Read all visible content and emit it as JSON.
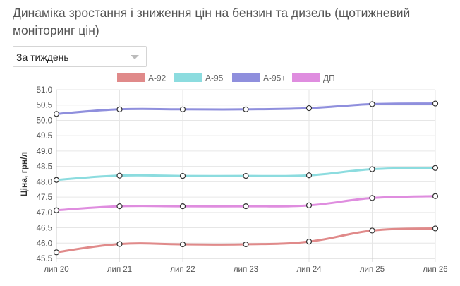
{
  "page": {
    "title": "Динаміка зростання і зниження цін на бензин та дизель (щотижневий моніторинг цін)"
  },
  "period_select": {
    "selected": "За тиждень"
  },
  "chart_data": {
    "type": "line",
    "title": "",
    "xlabel": "",
    "ylabel": "Ціна, грн/л",
    "categories": [
      "лип 20",
      "лип 21",
      "лип 22",
      "лип 23",
      "лип 24",
      "лип 25",
      "лип 26"
    ],
    "ylim": [
      45.5,
      51.0
    ],
    "yticks": [
      "51.0",
      "50.5",
      "50.0",
      "49.5",
      "49.0",
      "48.5",
      "48.0",
      "47.5",
      "47.0",
      "46.5",
      "46.0",
      "45.5"
    ],
    "grid": true,
    "legend_position": "top",
    "series": [
      {
        "name": "А-92",
        "color": "#e08a8a",
        "values": [
          45.7,
          45.97,
          45.96,
          45.96,
          46.05,
          46.41,
          46.48
        ]
      },
      {
        "name": "А-95",
        "color": "#8cdcdf",
        "values": [
          48.06,
          48.2,
          48.19,
          48.19,
          48.21,
          48.41,
          48.45
        ]
      },
      {
        "name": "А-95+",
        "color": "#8f8fdd",
        "values": [
          50.21,
          50.36,
          50.36,
          50.36,
          50.4,
          50.53,
          50.55
        ]
      },
      {
        "name": "ДП",
        "color": "#df8ddf",
        "values": [
          47.07,
          47.2,
          47.2,
          47.2,
          47.23,
          47.47,
          47.53
        ]
      }
    ]
  }
}
